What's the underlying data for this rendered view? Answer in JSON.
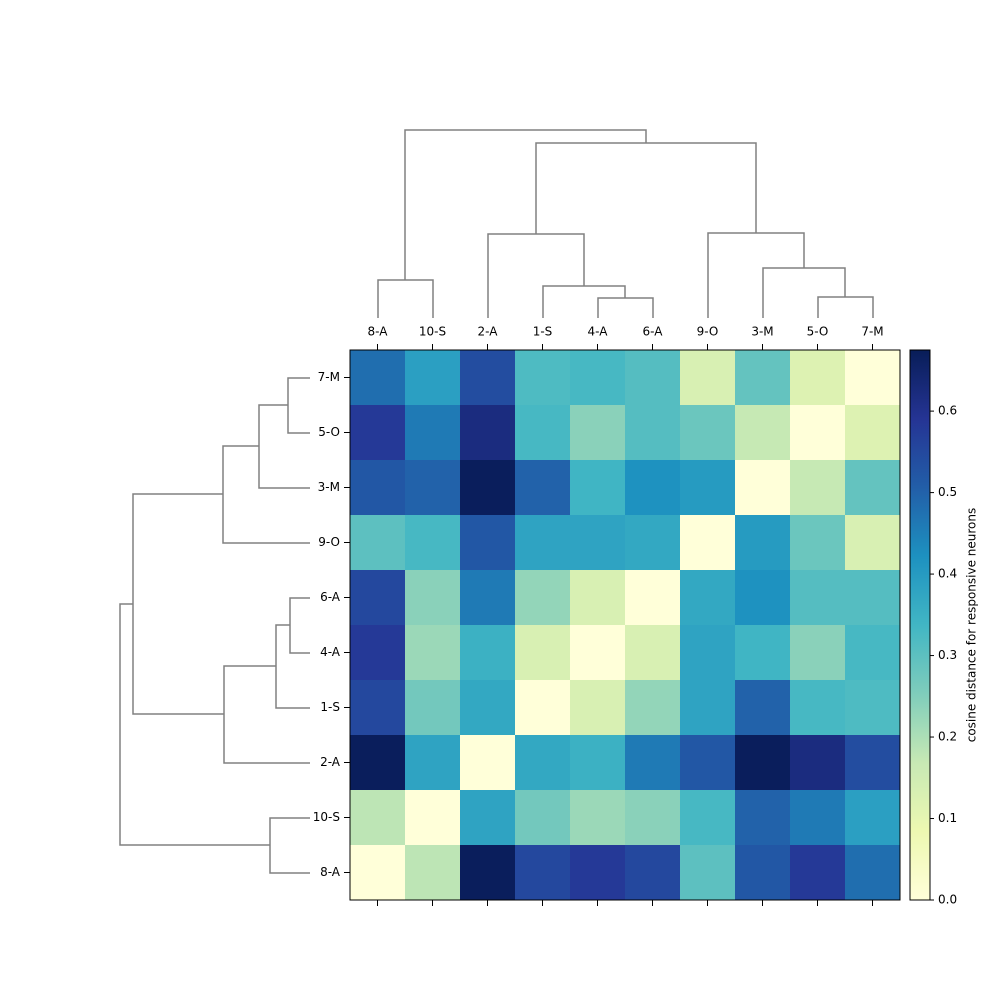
{
  "chart_data": {
    "type": "heatmap",
    "colormap": "YlGnBu",
    "columns": [
      "8-A",
      "10-S",
      "2-A",
      "1-S",
      "4-A",
      "6-A",
      "9-O",
      "3-M",
      "5-O",
      "7-M"
    ],
    "rows": [
      "7-M",
      "5-O",
      "3-M",
      "9-O",
      "6-A",
      "4-A",
      "1-S",
      "2-A",
      "10-S",
      "8-A"
    ],
    "values": [
      [
        0.48,
        0.39,
        0.54,
        0.32,
        0.33,
        0.31,
        0.13,
        0.29,
        0.12,
        0
      ],
      [
        0.58,
        0.46,
        0.62,
        0.33,
        0.24,
        0.31,
        0.28,
        0.17,
        0,
        0.12
      ],
      [
        0.52,
        0.5,
        0.67,
        0.5,
        0.34,
        0.42,
        0.4,
        0,
        0.17,
        0.29
      ],
      [
        0.3,
        0.33,
        0.52,
        0.38,
        0.38,
        0.37,
        0,
        0.4,
        0.28,
        0.13
      ],
      [
        0.55,
        0.24,
        0.46,
        0.23,
        0.13,
        0,
        0.37,
        0.42,
        0.31,
        0.31
      ],
      [
        0.58,
        0.22,
        0.35,
        0.13,
        0,
        0.13,
        0.38,
        0.34,
        0.24,
        0.33
      ],
      [
        0.55,
        0.27,
        0.37,
        0,
        0.13,
        0.23,
        0.38,
        0.5,
        0.33,
        0.32
      ],
      [
        0.67,
        0.38,
        0,
        0.37,
        0.35,
        0.46,
        0.52,
        0.67,
        0.62,
        0.54
      ],
      [
        0.18,
        0,
        0.38,
        0.27,
        0.22,
        0.24,
        0.33,
        0.5,
        0.46,
        0.39
      ],
      [
        0,
        0.18,
        0.67,
        0.55,
        0.58,
        0.55,
        0.3,
        0.52,
        0.58,
        0.48
      ]
    ],
    "clim": [
      0,
      0.675
    ],
    "cticks": [
      {
        "value": 0,
        "label": "0.0"
      },
      0.1,
      0.2,
      0.3,
      0.4,
      0.5,
      0.6
    ],
    "colorbar_label": "cosine distance for responsive neurons"
  }
}
